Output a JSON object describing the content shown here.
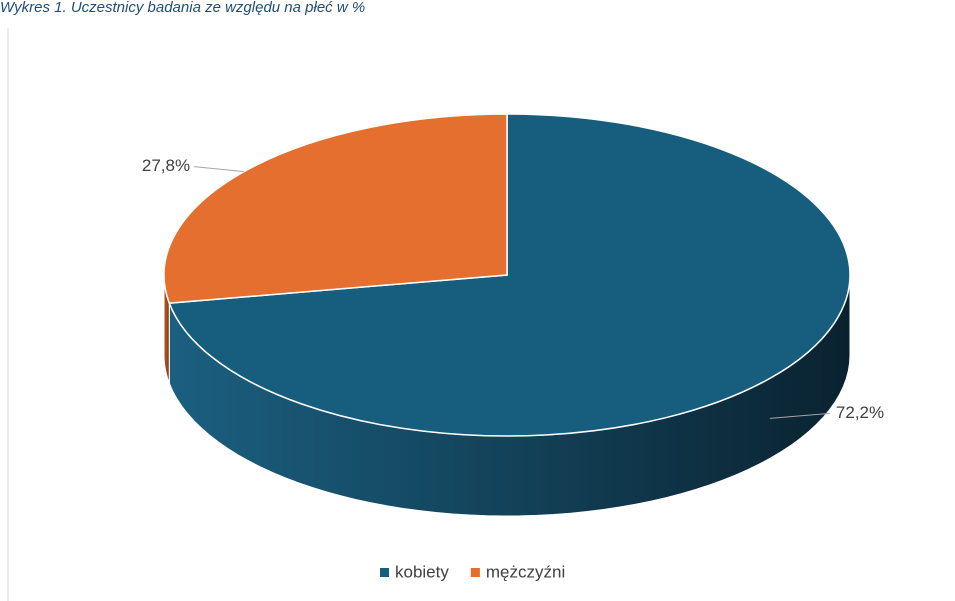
{
  "chart_data": {
    "type": "pie3d",
    "title": "Wykres 1. Uczestnicy badania ze względu na płeć w %",
    "categories": [
      "kobiety",
      "mężczyźni"
    ],
    "values": [
      72.2,
      27.8
    ],
    "value_labels": [
      "72,2%",
      "27,8%"
    ],
    "colors": [
      "#175e7e",
      "#e46f2e"
    ],
    "legend": "bottom"
  }
}
